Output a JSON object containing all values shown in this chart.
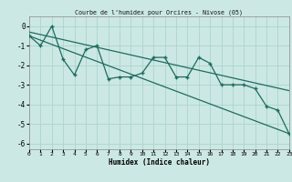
{
  "title": "Courbe de l'humidex pour Orcires - Nivose (05)",
  "xlabel": "Humidex (Indice chaleur)",
  "bg_color": "#cce8e4",
  "line_color": "#1e6b5e",
  "grid_color": "#aad4ce",
  "xlim": [
    0,
    23
  ],
  "ylim": [
    -6.3,
    0.5
  ],
  "xticks": [
    0,
    1,
    2,
    3,
    4,
    5,
    6,
    7,
    8,
    9,
    10,
    11,
    12,
    13,
    14,
    15,
    16,
    17,
    18,
    19,
    20,
    21,
    22,
    23
  ],
  "yticks": [
    0,
    -1,
    -2,
    -3,
    -4,
    -5,
    -6
  ],
  "data_x": [
    0,
    1,
    2,
    3,
    4,
    5,
    6,
    7,
    8,
    9,
    10,
    11,
    12,
    13,
    14,
    15,
    16,
    17,
    18,
    19,
    20,
    21,
    22,
    23
  ],
  "data_y": [
    -0.5,
    -1.0,
    0.0,
    -1.7,
    -2.5,
    -1.2,
    -1.0,
    -2.7,
    -2.6,
    -2.6,
    -2.4,
    -1.6,
    -1.6,
    -2.6,
    -2.6,
    -1.6,
    -1.9,
    -3.0,
    -3.0,
    -3.0,
    -3.2,
    -4.1,
    -4.3,
    -5.5
  ],
  "line1_x": [
    0,
    23
  ],
  "line1_y": [
    -0.3,
    -3.3
  ],
  "line2_x": [
    0,
    23
  ],
  "line2_y": [
    -0.5,
    -5.5
  ]
}
